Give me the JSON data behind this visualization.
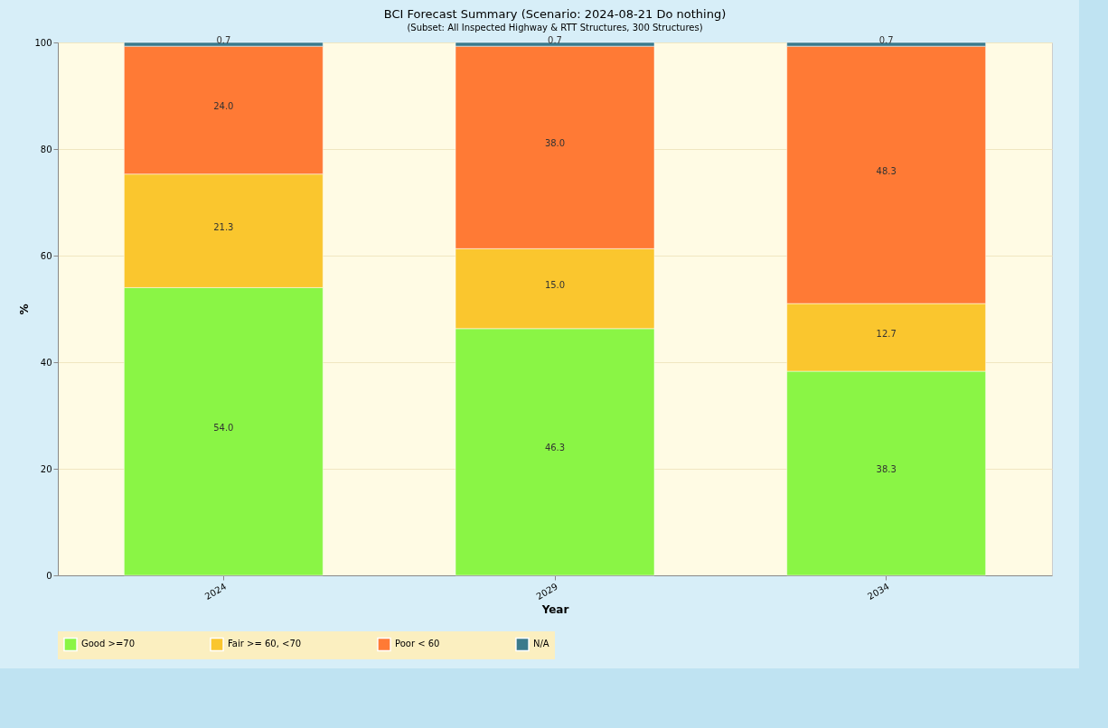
{
  "chart_data": {
    "type": "bar",
    "title": "BCI Forecast Summary (Scenario: 2024-08-21 Do nothing)",
    "subtitle": "(Subset: All Inspected Highway & RTT Structures, 300 Structures)",
    "xlabel": "Year",
    "ylabel": "%",
    "categories": [
      "2024",
      "2029",
      "2034"
    ],
    "stacked": true,
    "ylim": [
      0,
      100
    ],
    "yticks": [
      0,
      20,
      40,
      60,
      80,
      100
    ],
    "grid": "y",
    "legend": "bottom",
    "series": [
      {
        "name": "Good >=70",
        "color": "#8af545",
        "values": [
          54.0,
          46.3,
          38.3
        ],
        "value_labels": [
          "54.0",
          "46.3",
          "38.3"
        ]
      },
      {
        "name": "Fair >= 60, <70",
        "color": "#fac62e",
        "values": [
          21.3,
          15.0,
          12.7
        ],
        "value_labels": [
          "21.3",
          "15.0",
          "12.7"
        ]
      },
      {
        "name": "Poor < 60",
        "color": "#ff7a35",
        "values": [
          24.0,
          38.0,
          48.3
        ],
        "value_labels": [
          "24.0",
          "38.0",
          "48.3"
        ]
      },
      {
        "name": "N/A",
        "color": "#3a7a8c",
        "values": [
          0.7,
          0.7,
          0.7
        ],
        "value_labels": [
          "0.7",
          "0.7",
          "0.7"
        ]
      }
    ]
  }
}
